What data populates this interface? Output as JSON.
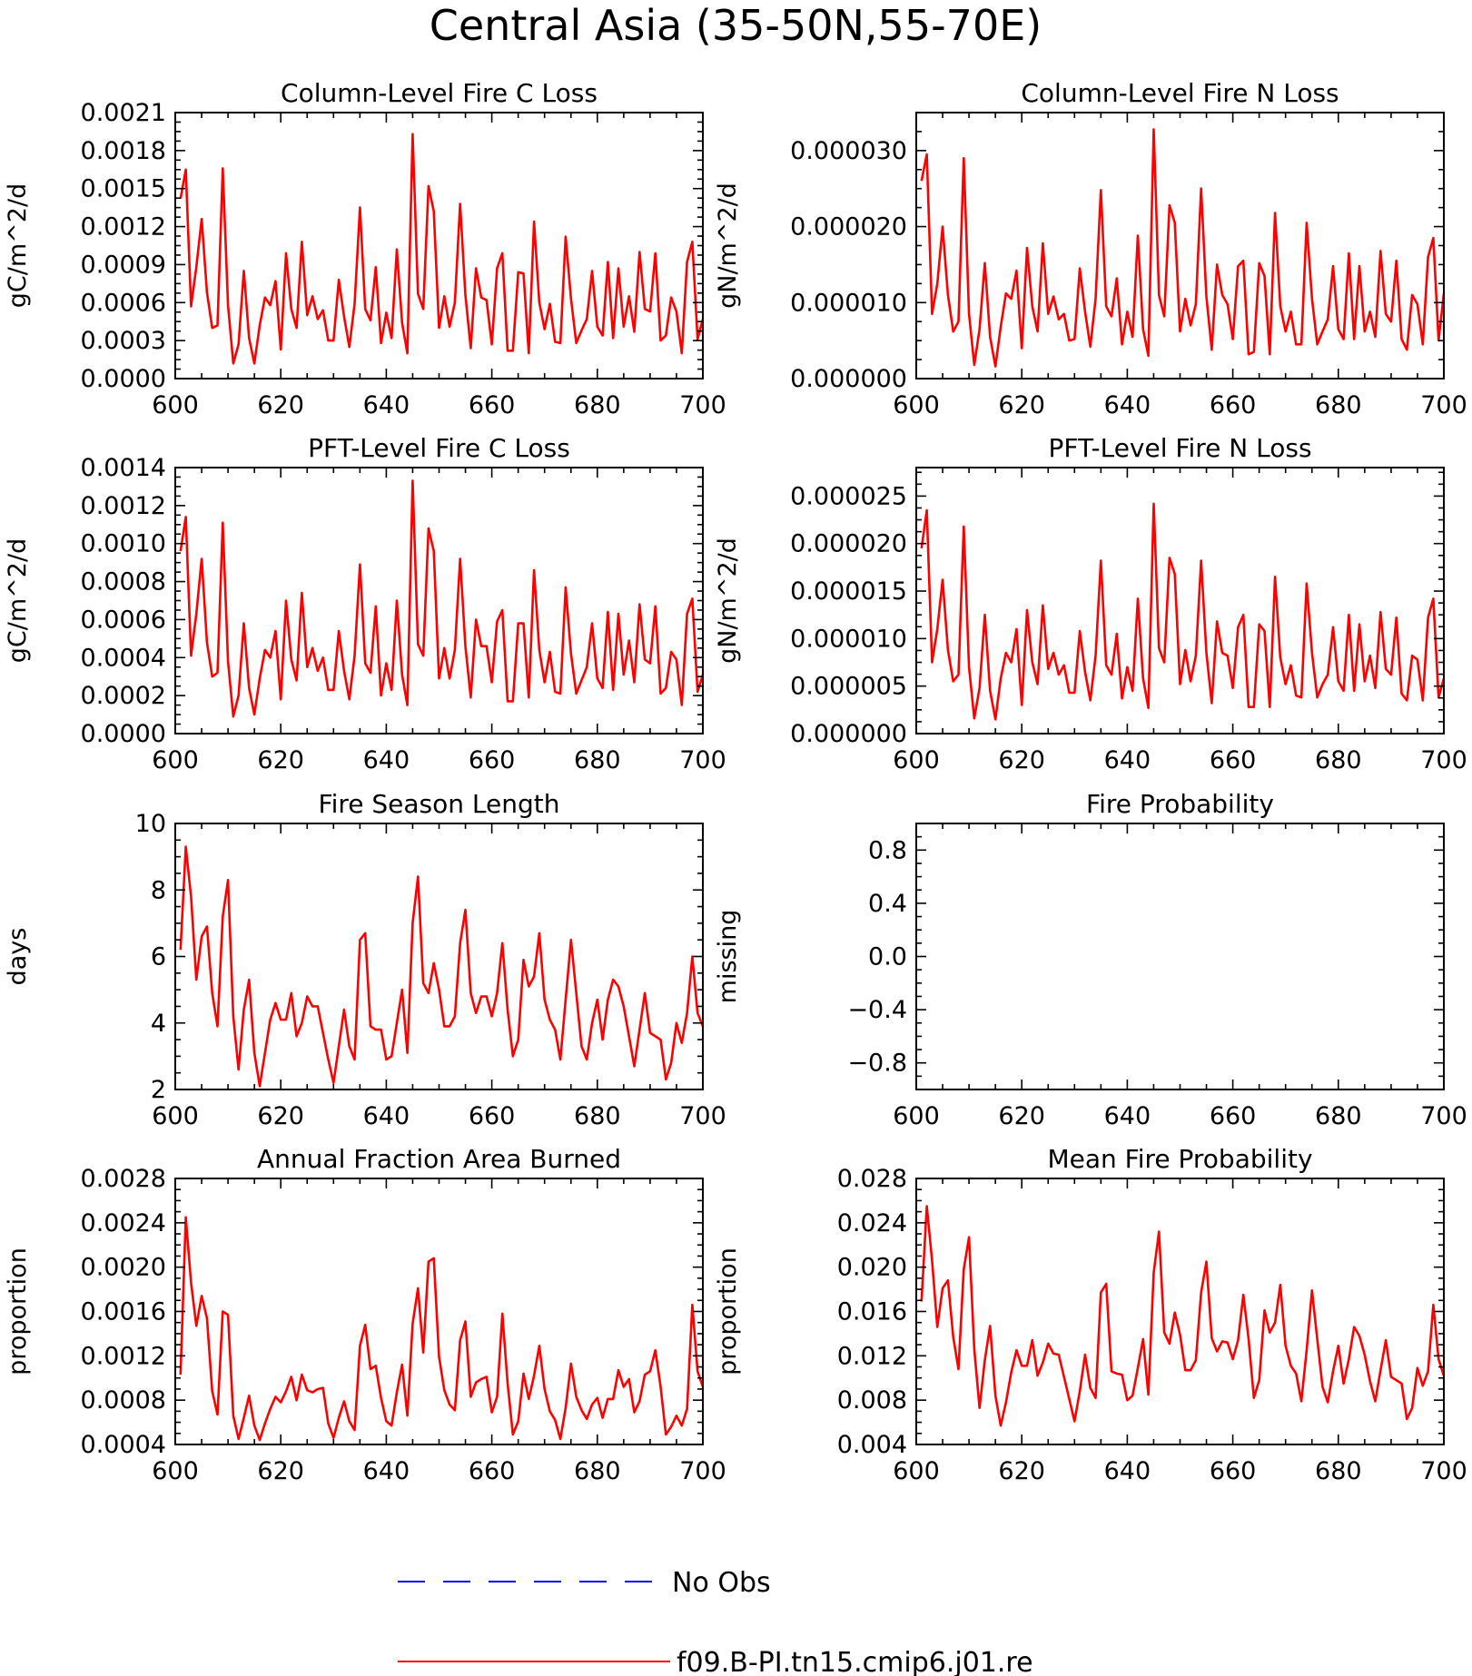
{
  "figure": {
    "title": "Central Asia (35-50N,55-70E)"
  },
  "legend": [
    {
      "label": "No Obs",
      "color": "#0000ff",
      "dash": "dashed"
    },
    {
      "label": "f09.B-PI.tn15.cmip6.j01.re",
      "color": "#ff0000",
      "dash": "solid"
    }
  ],
  "chart_data": [
    {
      "type": "line",
      "title": "Column-Level Fire C Loss",
      "ylabel": "gC/m^2/d",
      "xlim": [
        600,
        700
      ],
      "ylim": [
        0,
        0.0021
      ],
      "xticks": [
        600,
        620,
        640,
        660,
        680,
        700
      ],
      "yticks": [
        "0.0000",
        "0.0003",
        "0.0006",
        "0.0009",
        "0.0012",
        "0.0015",
        "0.0018",
        "0.0021"
      ],
      "x_start": 601,
      "series": [
        {
          "name": "f09.B-PI.tn15.cmip6.j01.re",
          "color": "#ff0000",
          "values": [
            0.00142,
            0.00165,
            0.00057,
            0.00088,
            0.00126,
            0.00068,
            0.0004,
            0.00042,
            0.00166,
            0.00058,
            0.00012,
            0.00027,
            0.00085,
            0.00032,
            0.00012,
            0.00042,
            0.00064,
            0.00058,
            0.00077,
            0.00023,
            0.00099,
            0.00055,
            0.0004,
            0.00108,
            0.0005,
            0.00065,
            0.00047,
            0.00054,
            0.0003,
            0.0003,
            0.00078,
            0.00049,
            0.00025,
            0.00059,
            0.00135,
            0.00055,
            0.00046,
            0.00088,
            0.00028,
            0.00052,
            0.00032,
            0.00102,
            0.00044,
            0.0002,
            0.00193,
            0.00067,
            0.00055,
            0.00152,
            0.00132,
            0.0004,
            0.00065,
            0.00041,
            0.0006,
            0.00138,
            0.00066,
            0.00024,
            0.00087,
            0.00064,
            0.00062,
            0.00027,
            0.00087,
            0.00099,
            0.00022,
            0.00022,
            0.00084,
            0.00083,
            0.0002,
            0.00124,
            0.0006,
            0.00039,
            0.00059,
            0.00029,
            0.00028,
            0.00112,
            0.00063,
            0.00028,
            0.00038,
            0.00047,
            0.00085,
            0.00041,
            0.00034,
            0.00092,
            0.00032,
            0.00087,
            0.00041,
            0.00065,
            0.00037,
            0.001,
            0.00055,
            0.00053,
            0.00099,
            0.0003,
            0.00034,
            0.00064,
            0.00053,
            0.0002,
            0.00092,
            0.00108,
            0.00031,
            0.00047
          ]
        }
      ]
    },
    {
      "type": "line",
      "title": "Column-Level Fire N Loss",
      "ylabel": "gN/m^2/d",
      "xlim": [
        600,
        700
      ],
      "ylim": [
        0,
        3.5e-05
      ],
      "xticks": [
        600,
        620,
        640,
        660,
        680,
        700
      ],
      "yticks": [
        "0.000000",
        "0.000010",
        "0.000020",
        "0.000030"
      ],
      "x_start": 601,
      "series": [
        {
          "name": "f09.B-PI.tn15.cmip6.j01.re",
          "color": "#ff0000",
          "values": [
            2.6e-05,
            2.95e-05,
            8.5e-06,
            1.25e-05,
            2e-05,
            1.1e-05,
            6.2e-06,
            7.5e-06,
            2.9e-05,
            8.5e-06,
            1.8e-06,
            6.5e-06,
            1.52e-05,
            5.5e-06,
            1.6e-06,
            6.8e-06,
            1.12e-05,
            1.05e-05,
            1.42e-05,
            4e-06,
            1.72e-05,
            9.5e-06,
            6.2e-06,
            1.78e-05,
            8.5e-06,
            1.08e-05,
            7.8e-06,
            8.5e-06,
            5e-06,
            5.2e-06,
            1.45e-05,
            8.8e-06,
            4.2e-06,
            1.05e-05,
            2.48e-05,
            9.5e-06,
            8.2e-06,
            1.32e-05,
            4.5e-06,
            8.8e-06,
            5.5e-06,
            1.88e-05,
            6.5e-06,
            3e-06,
            3.28e-05,
            1.1e-05,
            8.2e-06,
            2.28e-05,
            2.05e-05,
            6.2e-06,
            1.05e-05,
            7e-06,
            9.8e-06,
            2.5e-05,
            1.08e-05,
            3.8e-06,
            1.5e-05,
            1.1e-05,
            9.8e-06,
            5.2e-06,
            1.48e-05,
            1.55e-05,
            3.2e-06,
            3.5e-06,
            1.52e-05,
            1.35e-05,
            3.2e-06,
            2.18e-05,
            9.5e-06,
            6.2e-06,
            8.8e-06,
            4.5e-06,
            4.5e-06,
            2.05e-05,
            1.05e-05,
            4.5e-06,
            6.2e-06,
            7.8e-06,
            1.48e-05,
            6.5e-06,
            5.2e-06,
            1.65e-05,
            5.2e-06,
            1.48e-05,
            6.2e-06,
            8.8e-06,
            5.5e-06,
            1.68e-05,
            8.5e-06,
            7.5e-06,
            1.55e-05,
            5.2e-06,
            3.8e-06,
            1.1e-05,
            9.8e-06,
            4.5e-06,
            1.6e-05,
            1.85e-05,
            5e-06,
            1.12e-05
          ]
        }
      ]
    },
    {
      "type": "line",
      "title": "PFT-Level Fire C Loss",
      "ylabel": "gC/m^2/d",
      "xlim": [
        600,
        700
      ],
      "ylim": [
        0,
        0.0014
      ],
      "xticks": [
        600,
        620,
        640,
        660,
        680,
        700
      ],
      "yticks": [
        "0.0000",
        "0.0002",
        "0.0004",
        "0.0006",
        "0.0008",
        "0.0010",
        "0.0012",
        "0.0014"
      ],
      "x_start": 601,
      "series": [
        {
          "name": "f09.B-PI.tn15.cmip6.j01.re",
          "color": "#ff0000",
          "values": [
            0.00096,
            0.00114,
            0.00041,
            0.00063,
            0.00092,
            0.00048,
            0.0003,
            0.00032,
            0.00111,
            0.00038,
            9e-05,
            0.0002,
            0.00058,
            0.00024,
            0.0001,
            0.00029,
            0.00044,
            0.0004,
            0.00054,
            0.00018,
            0.0007,
            0.00039,
            0.00028,
            0.00074,
            0.00035,
            0.00045,
            0.00033,
            0.0004,
            0.00023,
            0.00023,
            0.00054,
            0.00033,
            0.00018,
            0.00041,
            0.00089,
            0.00037,
            0.00032,
            0.00067,
            0.0002,
            0.00037,
            0.00023,
            0.0007,
            0.00031,
            0.00015,
            0.00133,
            0.00047,
            0.00041,
            0.00108,
            0.00096,
            0.00029,
            0.00045,
            0.00029,
            0.00044,
            0.00092,
            0.00046,
            0.00019,
            0.0006,
            0.00046,
            0.00046,
            0.00027,
            0.00059,
            0.00065,
            0.00017,
            0.00017,
            0.00058,
            0.00058,
            0.00019,
            0.00086,
            0.00044,
            0.00027,
            0.00043,
            0.00022,
            0.00021,
            0.00077,
            0.00042,
            0.00021,
            0.00028,
            0.00035,
            0.00058,
            0.00029,
            0.00024,
            0.00064,
            0.00023,
            0.00063,
            0.00031,
            0.00049,
            0.00027,
            0.00068,
            0.00039,
            0.00037,
            0.00067,
            0.00021,
            0.00024,
            0.00043,
            0.00039,
            0.00015,
            0.00063,
            0.00071,
            0.00022,
            0.00031
          ]
        }
      ]
    },
    {
      "type": "line",
      "title": "PFT-Level Fire N Loss",
      "ylabel": "gN/m^2/d",
      "xlim": [
        600,
        700
      ],
      "ylim": [
        0,
        2.8e-05
      ],
      "xticks": [
        600,
        620,
        640,
        660,
        680,
        700
      ],
      "yticks": [
        "0.000000",
        "0.000005",
        "0.000010",
        "0.000015",
        "0.000020",
        "0.000025"
      ],
      "x_start": 601,
      "series": [
        {
          "name": "f09.B-PI.tn15.cmip6.j01.re",
          "color": "#ff0000",
          "values": [
            1.95e-05,
            2.35e-05,
            7.5e-06,
            1.1e-05,
            1.62e-05,
            8.8e-06,
            5.5e-06,
            6.2e-06,
            2.18e-05,
            7e-06,
            1.6e-06,
            4.8e-06,
            1.25e-05,
            4.5e-06,
            1.5e-06,
            5.8e-06,
            8.5e-06,
            7.5e-06,
            1.1e-05,
            3e-06,
            1.3e-05,
            7.5e-06,
            5.2e-06,
            1.35e-05,
            6.8e-06,
            8.5e-06,
            6.2e-06,
            7.2e-06,
            4.3e-06,
            4.3e-06,
            1.08e-05,
            6.5e-06,
            3.5e-06,
            8.2e-06,
            1.82e-05,
            7.2e-06,
            6.2e-06,
            1.05e-05,
            3.7e-06,
            7e-06,
            4.5e-06,
            1.42e-05,
            5.8e-06,
            2.7e-06,
            2.42e-05,
            9e-06,
            7.5e-06,
            1.85e-05,
            1.68e-05,
            5.2e-06,
            8.8e-06,
            5.5e-06,
            8.2e-06,
            1.82e-05,
            8.5e-06,
            3.2e-06,
            1.18e-05,
            8.5e-06,
            8.2e-06,
            4.8e-06,
            1.12e-05,
            1.25e-05,
            2.8e-06,
            2.8e-06,
            1.15e-05,
            1.08e-05,
            2.8e-06,
            1.65e-05,
            8e-06,
            5.2e-06,
            7.2e-06,
            4e-06,
            3.8e-06,
            1.58e-05,
            8.5e-06,
            3.8e-06,
            5.2e-06,
            6.2e-06,
            1.12e-05,
            5.5e-06,
            4.5e-06,
            1.25e-05,
            4.5e-06,
            1.15e-05,
            5.5e-06,
            8.2e-06,
            4.8e-06,
            1.28e-05,
            6.8e-06,
            6.2e-06,
            1.22e-05,
            4.2e-06,
            3.5e-06,
            8.2e-06,
            7.8e-06,
            3.5e-06,
            1.22e-05,
            1.42e-05,
            3.8e-06,
            5.8e-06
          ]
        }
      ]
    },
    {
      "type": "line",
      "title": "Fire Season Length",
      "ylabel": "days",
      "xlim": [
        600,
        700
      ],
      "ylim": [
        2,
        10
      ],
      "xticks": [
        600,
        620,
        640,
        660,
        680,
        700
      ],
      "yticks": [
        "2",
        "4",
        "6",
        "8",
        "10"
      ],
      "x_start": 601,
      "series": [
        {
          "name": "f09.B-PI.tn15.cmip6.j01.re",
          "color": "#ff0000",
          "values": [
            6.2,
            9.3,
            7.8,
            5.3,
            6.6,
            6.9,
            4.9,
            3.9,
            7.2,
            8.3,
            4.2,
            2.6,
            4.4,
            5.3,
            3.1,
            2.1,
            3.1,
            4.1,
            4.6,
            4.1,
            4.1,
            4.9,
            3.6,
            4.0,
            4.8,
            4.5,
            4.5,
            3.7,
            2.9,
            2.2,
            3.3,
            4.4,
            3.3,
            2.9,
            6.5,
            6.7,
            3.9,
            3.8,
            3.8,
            2.9,
            3.0,
            4.0,
            5.0,
            3.1,
            7.0,
            8.4,
            5.2,
            4.9,
            5.8,
            5.0,
            3.9,
            3.9,
            4.2,
            6.4,
            7.4,
            4.9,
            4.3,
            4.8,
            4.8,
            4.2,
            4.9,
            6.4,
            4.4,
            3.0,
            3.5,
            5.9,
            5.1,
            5.4,
            6.7,
            4.7,
            4.1,
            3.8,
            2.9,
            4.7,
            6.5,
            4.9,
            3.3,
            2.9,
            4.0,
            4.7,
            3.5,
            4.7,
            5.3,
            5.1,
            4.5,
            3.6,
            2.7,
            3.8,
            4.9,
            3.7,
            3.6,
            3.5,
            2.3,
            2.8,
            4.0,
            3.4,
            4.3,
            6.0,
            4.3,
            3.9
          ]
        }
      ]
    },
    {
      "type": "line",
      "title": "Fire Probability",
      "ylabel": "missing",
      "xlim": [
        600,
        700
      ],
      "ylim": [
        -1,
        1
      ],
      "xticks": [
        600,
        620,
        640,
        660,
        680,
        700
      ],
      "yticks": [
        "−0.8",
        "−0.4",
        "0.0",
        "0.4",
        "0.8"
      ],
      "x_start": 601,
      "series": []
    },
    {
      "type": "line",
      "title": "Annual Fraction Area Burned",
      "ylabel": "proportion",
      "xlim": [
        600,
        700
      ],
      "ylim": [
        0.0004,
        0.0028
      ],
      "xticks": [
        600,
        620,
        640,
        660,
        680,
        700
      ],
      "yticks": [
        "0.0004",
        "0.0008",
        "0.0012",
        "0.0016",
        "0.0020",
        "0.0024",
        "0.0028"
      ],
      "x_start": 601,
      "series": [
        {
          "name": "f09.B-PI.tn15.cmip6.j01.re",
          "color": "#ff0000",
          "values": [
            0.00103,
            0.00245,
            0.00186,
            0.00147,
            0.00174,
            0.00154,
            0.00088,
            0.00067,
            0.0016,
            0.00157,
            0.00066,
            0.00045,
            0.00064,
            0.00084,
            0.00057,
            0.00044,
            0.00059,
            0.00072,
            0.00083,
            0.00078,
            0.00088,
            0.00101,
            0.0008,
            0.00103,
            0.00089,
            0.00087,
            0.0009,
            0.00091,
            0.00059,
            0.00046,
            0.00064,
            0.00079,
            0.00061,
            0.00053,
            0.00129,
            0.00148,
            0.00108,
            0.00111,
            0.00082,
            0.00061,
            0.00057,
            0.00087,
            0.00112,
            0.00066,
            0.00149,
            0.00181,
            0.00123,
            0.00205,
            0.00208,
            0.00119,
            0.00089,
            0.00076,
            0.00071,
            0.00134,
            0.00151,
            0.00083,
            0.00096,
            0.00099,
            0.00101,
            0.00069,
            0.00083,
            0.00158,
            0.00095,
            0.00049,
            0.00061,
            0.00104,
            0.00081,
            0.00102,
            0.00129,
            0.0009,
            0.0007,
            0.00062,
            0.00045,
            0.00073,
            0.00113,
            0.00083,
            0.00071,
            0.00063,
            0.00076,
            0.00082,
            0.00064,
            0.00081,
            0.00081,
            0.00107,
            0.00092,
            0.00099,
            0.00069,
            0.00079,
            0.00103,
            0.00106,
            0.00125,
            0.00092,
            0.00049,
            0.00056,
            0.00066,
            0.00057,
            0.00072,
            0.00166,
            0.00106,
            0.00092
          ]
        }
      ]
    },
    {
      "type": "line",
      "title": "Mean Fire Probability",
      "ylabel": "proportion",
      "xlim": [
        600,
        700
      ],
      "ylim": [
        0.004,
        0.028
      ],
      "xticks": [
        600,
        620,
        640,
        660,
        680,
        700
      ],
      "yticks": [
        "0.004",
        "0.008",
        "0.012",
        "0.016",
        "0.020",
        "0.024",
        "0.028"
      ],
      "x_start": 601,
      "series": [
        {
          "name": "f09.B-PI.tn15.cmip6.j01.re",
          "color": "#ff0000",
          "values": [
            0.0169,
            0.0255,
            0.0206,
            0.0146,
            0.0181,
            0.0188,
            0.0137,
            0.0108,
            0.0198,
            0.0227,
            0.0126,
            0.0073,
            0.0116,
            0.0147,
            0.0084,
            0.0057,
            0.0078,
            0.0105,
            0.0125,
            0.0111,
            0.0111,
            0.0134,
            0.0102,
            0.0114,
            0.0131,
            0.0122,
            0.0121,
            0.0101,
            0.0081,
            0.0061,
            0.0088,
            0.0121,
            0.0091,
            0.0082,
            0.0177,
            0.0185,
            0.0106,
            0.0104,
            0.0103,
            0.008,
            0.0084,
            0.0109,
            0.0135,
            0.0085,
            0.0195,
            0.0232,
            0.0141,
            0.0131,
            0.0159,
            0.0139,
            0.0107,
            0.0107,
            0.0116,
            0.0177,
            0.0205,
            0.0136,
            0.0124,
            0.0133,
            0.0132,
            0.0117,
            0.0134,
            0.0175,
            0.0135,
            0.0082,
            0.0098,
            0.0161,
            0.0141,
            0.015,
            0.0184,
            0.0129,
            0.0111,
            0.0104,
            0.0079,
            0.0125,
            0.0179,
            0.0135,
            0.0092,
            0.0078,
            0.0106,
            0.0129,
            0.0095,
            0.0117,
            0.0146,
            0.0138,
            0.0121,
            0.0097,
            0.0079,
            0.0107,
            0.0134,
            0.0101,
            0.0098,
            0.0095,
            0.0063,
            0.0073,
            0.0109,
            0.0093,
            0.0106,
            0.0166,
            0.0117,
            0.0102
          ]
        }
      ]
    }
  ]
}
